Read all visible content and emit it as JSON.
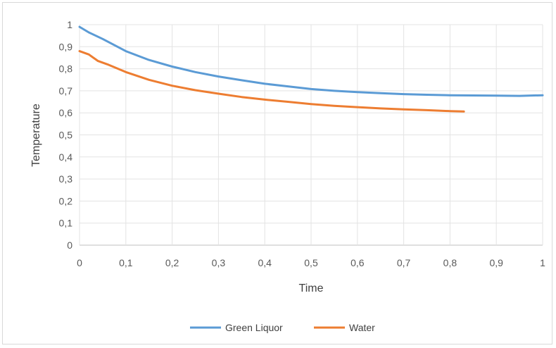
{
  "chart_data": {
    "type": "line",
    "title": "",
    "xlabel": "Time",
    "ylabel": "Temperature",
    "xlim": [
      0,
      1
    ],
    "ylim": [
      0,
      1
    ],
    "xticks": [
      "0",
      "0,1",
      "0,2",
      "0,3",
      "0,4",
      "0,5",
      "0,6",
      "0,7",
      "0,8",
      "0,9",
      "1"
    ],
    "yticks": [
      "0",
      "0,1",
      "0,2",
      "0,3",
      "0,4",
      "0,5",
      "0,6",
      "0,7",
      "0,8",
      "0,9",
      "1"
    ],
    "grid": true,
    "legend_position": "bottom",
    "series": [
      {
        "name": "Green Liquor",
        "color": "#5b9bd5",
        "x": [
          0,
          0.02,
          0.05,
          0.1,
          0.15,
          0.2,
          0.25,
          0.3,
          0.35,
          0.4,
          0.45,
          0.5,
          0.55,
          0.6,
          0.65,
          0.7,
          0.75,
          0.8,
          0.85,
          0.9,
          0.95,
          1.0
        ],
        "y": [
          0.99,
          0.965,
          0.935,
          0.88,
          0.84,
          0.81,
          0.785,
          0.765,
          0.748,
          0.732,
          0.72,
          0.708,
          0.7,
          0.694,
          0.689,
          0.685,
          0.682,
          0.68,
          0.679,
          0.678,
          0.677,
          0.68
        ]
      },
      {
        "name": "Water",
        "color": "#ed7d31",
        "x": [
          0,
          0.02,
          0.04,
          0.06,
          0.1,
          0.15,
          0.2,
          0.25,
          0.3,
          0.35,
          0.4,
          0.45,
          0.5,
          0.55,
          0.6,
          0.65,
          0.7,
          0.75,
          0.8,
          0.83
        ],
        "y": [
          0.88,
          0.865,
          0.835,
          0.82,
          0.785,
          0.75,
          0.723,
          0.703,
          0.687,
          0.672,
          0.66,
          0.65,
          0.64,
          0.632,
          0.626,
          0.62,
          0.616,
          0.612,
          0.608,
          0.606
        ]
      }
    ]
  }
}
